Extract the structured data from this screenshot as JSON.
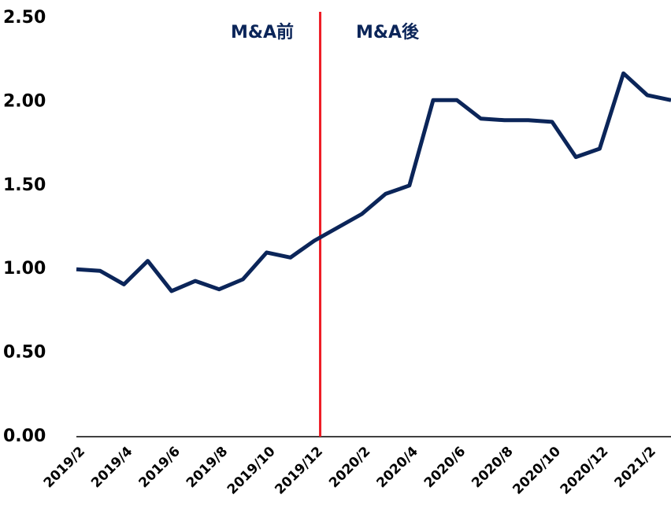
{
  "chart_data": {
    "type": "line",
    "categories": [
      "2019/2",
      null,
      "2019/4",
      null,
      "2019/6",
      null,
      "2019/8",
      null,
      "2019/10",
      null,
      "2019/12",
      null,
      "2020/2",
      null,
      "2020/4",
      null,
      "2020/6",
      null,
      "2020/8",
      null,
      "2020/10",
      null,
      "2020/12",
      null,
      "2021/2",
      null
    ],
    "series": [
      {
        "color": "#0b2559",
        "values": [
          1.0,
          0.99,
          0.91,
          1.05,
          0.87,
          0.93,
          0.88,
          0.94,
          1.1,
          1.07,
          1.17,
          1.25,
          1.33,
          1.45,
          1.5,
          2.01,
          2.01,
          1.9,
          1.89,
          1.89,
          1.88,
          1.67,
          1.72,
          2.17,
          2.04,
          2.01
        ]
      }
    ],
    "ylim": [
      0,
      2.5
    ],
    "yticks": [
      {
        "value": 0,
        "label": "0.00"
      },
      {
        "value": 0.5,
        "label": "0.50"
      },
      {
        "value": 1,
        "label": "1.00"
      },
      {
        "value": 1.5,
        "label": "1.50"
      },
      {
        "value": 2,
        "label": "2.00"
      },
      {
        "value": 2.5,
        "label": "2.50"
      }
    ],
    "grid": false,
    "annotations": [
      "M&A前",
      "M&A後"
    ],
    "divider_color": "#ee1c25"
  }
}
